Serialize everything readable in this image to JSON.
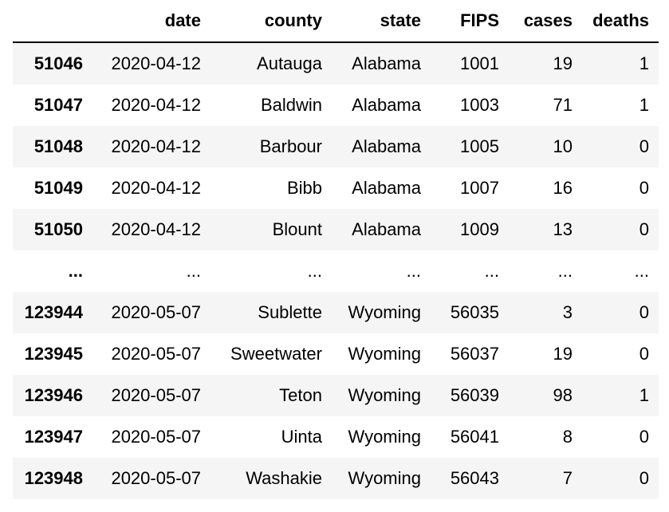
{
  "table": {
    "columns": [
      "",
      "date",
      "county",
      "state",
      "FIPS",
      "cases",
      "deaths"
    ],
    "rows": [
      [
        "51046",
        "2020-04-12",
        "Autauga",
        "Alabama",
        "1001",
        "19",
        "1"
      ],
      [
        "51047",
        "2020-04-12",
        "Baldwin",
        "Alabama",
        "1003",
        "71",
        "1"
      ],
      [
        "51048",
        "2020-04-12",
        "Barbour",
        "Alabama",
        "1005",
        "10",
        "0"
      ],
      [
        "51049",
        "2020-04-12",
        "Bibb",
        "Alabama",
        "1007",
        "16",
        "0"
      ],
      [
        "51050",
        "2020-04-12",
        "Blount",
        "Alabama",
        "1009",
        "13",
        "0"
      ],
      [
        "...",
        "...",
        "...",
        "...",
        "...",
        "...",
        "..."
      ],
      [
        "123944",
        "2020-05-07",
        "Sublette",
        "Wyoming",
        "56035",
        "3",
        "0"
      ],
      [
        "123945",
        "2020-05-07",
        "Sweetwater",
        "Wyoming",
        "56037",
        "19",
        "0"
      ],
      [
        "123946",
        "2020-05-07",
        "Teton",
        "Wyoming",
        "56039",
        "98",
        "1"
      ],
      [
        "123947",
        "2020-05-07",
        "Uinta",
        "Wyoming",
        "56041",
        "8",
        "0"
      ],
      [
        "123948",
        "2020-05-07",
        "Washakie",
        "Wyoming",
        "56043",
        "7",
        "0"
      ]
    ]
  }
}
